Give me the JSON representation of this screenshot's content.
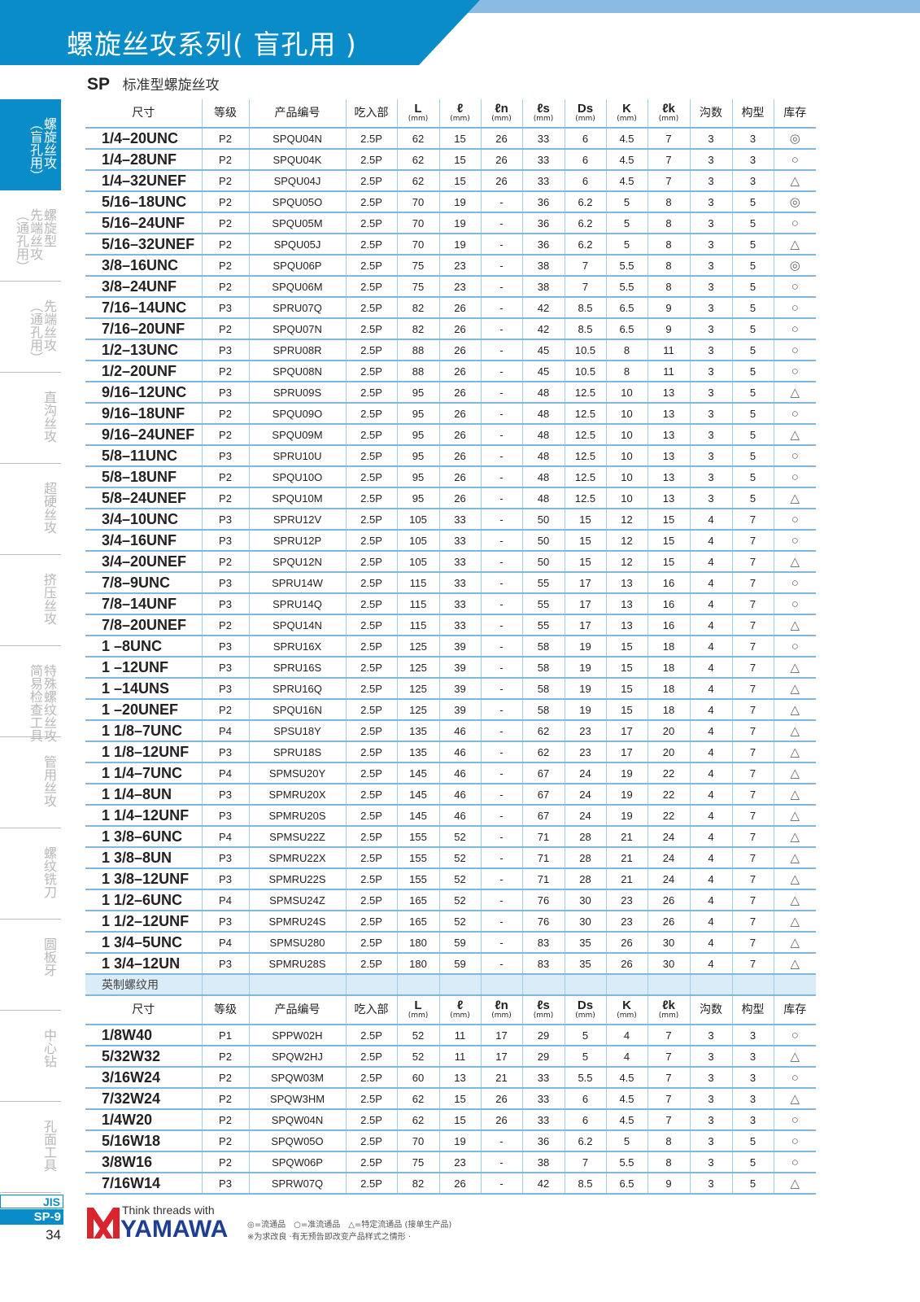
{
  "header": {
    "title": "螺旋丝攻系列( 盲孔用 )"
  },
  "series": {
    "code": "SP",
    "name": "标准型螺旋丝攻"
  },
  "colors": {
    "brand_blue": "#0a8cc8",
    "light_blue": "#8bbbe0",
    "logo_red": "#d9232d",
    "logo_navy": "#1d3e93"
  },
  "sidebar": {
    "items": [
      {
        "label": "螺旋丝攻\n（盲孔用）",
        "active": true
      },
      {
        "label": "螺旋型\n先端丝攻\n（通孔用）"
      },
      {
        "label": "先端丝攻\n（通孔用）"
      },
      {
        "label": "直沟丝攻"
      },
      {
        "label": "超硬丝攻"
      },
      {
        "label": "挤压丝攻"
      },
      {
        "label": "特殊螺纹丝攻\n简易检查工具"
      },
      {
        "label": "管用丝攻"
      },
      {
        "label": "螺纹铣刀"
      },
      {
        "label": "圆板牙"
      },
      {
        "label": "中心钻"
      },
      {
        "label": "孔面工具"
      }
    ]
  },
  "table": {
    "headers": [
      {
        "label": "尺寸"
      },
      {
        "label": "等级"
      },
      {
        "label": "产品编号"
      },
      {
        "label": "吃入部"
      },
      {
        "label": "L",
        "unit": "(mm)"
      },
      {
        "label": "ℓ",
        "unit": "(mm)"
      },
      {
        "label": "ℓn",
        "unit": "(mm)"
      },
      {
        "label": "ℓs",
        "unit": "(mm)"
      },
      {
        "label": "Ds",
        "unit": "(mm)"
      },
      {
        "label": "K",
        "unit": "(mm)"
      },
      {
        "label": "ℓk",
        "unit": "(mm)"
      },
      {
        "label": "沟数"
      },
      {
        "label": "构型"
      },
      {
        "label": "库存"
      }
    ],
    "rows": [
      [
        "1/4–20UNC",
        "P2",
        "SPQU04N",
        "2.5P",
        "62",
        "15",
        "26",
        "33",
        "6",
        "4.5",
        "7",
        "3",
        "3",
        "◎"
      ],
      [
        "1/4–28UNF",
        "P2",
        "SPQU04K",
        "2.5P",
        "62",
        "15",
        "26",
        "33",
        "6",
        "4.5",
        "7",
        "3",
        "3",
        "○"
      ],
      [
        "1/4–32UNEF",
        "P2",
        "SPQU04J",
        "2.5P",
        "62",
        "15",
        "26",
        "33",
        "6",
        "4.5",
        "7",
        "3",
        "3",
        "△"
      ],
      [
        "5/16–18UNC",
        "P2",
        "SPQU05O",
        "2.5P",
        "70",
        "19",
        "-",
        "36",
        "6.2",
        "5",
        "8",
        "3",
        "5",
        "◎"
      ],
      [
        "5/16–24UNF",
        "P2",
        "SPQU05M",
        "2.5P",
        "70",
        "19",
        "-",
        "36",
        "6.2",
        "5",
        "8",
        "3",
        "5",
        "○"
      ],
      [
        "5/16–32UNEF",
        "P2",
        "SPQU05J",
        "2.5P",
        "70",
        "19",
        "-",
        "36",
        "6.2",
        "5",
        "8",
        "3",
        "5",
        "△"
      ],
      [
        "3/8–16UNC",
        "P2",
        "SPQU06P",
        "2.5P",
        "75",
        "23",
        "-",
        "38",
        "7",
        "5.5",
        "8",
        "3",
        "5",
        "◎"
      ],
      [
        "3/8–24UNF",
        "P2",
        "SPQU06M",
        "2.5P",
        "75",
        "23",
        "-",
        "38",
        "7",
        "5.5",
        "8",
        "3",
        "5",
        "○"
      ],
      [
        "7/16–14UNC",
        "P3",
        "SPRU07Q",
        "2.5P",
        "82",
        "26",
        "-",
        "42",
        "8.5",
        "6.5",
        "9",
        "3",
        "5",
        "○"
      ],
      [
        "7/16–20UNF",
        "P2",
        "SPQU07N",
        "2.5P",
        "82",
        "26",
        "-",
        "42",
        "8.5",
        "6.5",
        "9",
        "3",
        "5",
        "○"
      ],
      [
        "1/2–13UNC",
        "P3",
        "SPRU08R",
        "2.5P",
        "88",
        "26",
        "-",
        "45",
        "10.5",
        "8",
        "11",
        "3",
        "5",
        "○"
      ],
      [
        "1/2–20UNF",
        "P2",
        "SPQU08N",
        "2.5P",
        "88",
        "26",
        "-",
        "45",
        "10.5",
        "8",
        "11",
        "3",
        "5",
        "○"
      ],
      [
        "9/16–12UNC",
        "P3",
        "SPRU09S",
        "2.5P",
        "95",
        "26",
        "-",
        "48",
        "12.5",
        "10",
        "13",
        "3",
        "5",
        "△"
      ],
      [
        "9/16–18UNF",
        "P2",
        "SPQU09O",
        "2.5P",
        "95",
        "26",
        "-",
        "48",
        "12.5",
        "10",
        "13",
        "3",
        "5",
        "○"
      ],
      [
        "9/16–24UNEF",
        "P2",
        "SPQU09M",
        "2.5P",
        "95",
        "26",
        "-",
        "48",
        "12.5",
        "10",
        "13",
        "3",
        "5",
        "△"
      ],
      [
        "5/8–11UNC",
        "P3",
        "SPRU10U",
        "2.5P",
        "95",
        "26",
        "-",
        "48",
        "12.5",
        "10",
        "13",
        "3",
        "5",
        "○"
      ],
      [
        "5/8–18UNF",
        "P2",
        "SPQU10O",
        "2.5P",
        "95",
        "26",
        "-",
        "48",
        "12.5",
        "10",
        "13",
        "3",
        "5",
        "○"
      ],
      [
        "5/8–24UNEF",
        "P2",
        "SPQU10M",
        "2.5P",
        "95",
        "26",
        "-",
        "48",
        "12.5",
        "10",
        "13",
        "3",
        "5",
        "△"
      ],
      [
        "3/4–10UNC",
        "P3",
        "SPRU12V",
        "2.5P",
        "105",
        "33",
        "-",
        "50",
        "15",
        "12",
        "15",
        "4",
        "7",
        "○"
      ],
      [
        "3/4–16UNF",
        "P3",
        "SPRU12P",
        "2.5P",
        "105",
        "33",
        "-",
        "50",
        "15",
        "12",
        "15",
        "4",
        "7",
        "○"
      ],
      [
        "3/4–20UNEF",
        "P2",
        "SPQU12N",
        "2.5P",
        "105",
        "33",
        "-",
        "50",
        "15",
        "12",
        "15",
        "4",
        "7",
        "△"
      ],
      [
        "7/8–9UNC",
        "P3",
        "SPRU14W",
        "2.5P",
        "115",
        "33",
        "-",
        "55",
        "17",
        "13",
        "16",
        "4",
        "7",
        "○"
      ],
      [
        "7/8–14UNF",
        "P3",
        "SPRU14Q",
        "2.5P",
        "115",
        "33",
        "-",
        "55",
        "17",
        "13",
        "16",
        "4",
        "7",
        "○"
      ],
      [
        "7/8–20UNEF",
        "P2",
        "SPQU14N",
        "2.5P",
        "115",
        "33",
        "-",
        "55",
        "17",
        "13",
        "16",
        "4",
        "7",
        "△"
      ],
      [
        "1 –8UNC",
        "P3",
        "SPRU16X",
        "2.5P",
        "125",
        "39",
        "-",
        "58",
        "19",
        "15",
        "18",
        "4",
        "7",
        "○"
      ],
      [
        "1 –12UNF",
        "P3",
        "SPRU16S",
        "2.5P",
        "125",
        "39",
        "-",
        "58",
        "19",
        "15",
        "18",
        "4",
        "7",
        "△"
      ],
      [
        "1 –14UNS",
        "P3",
        "SPRU16Q",
        "2.5P",
        "125",
        "39",
        "-",
        "58",
        "19",
        "15",
        "18",
        "4",
        "7",
        "△"
      ],
      [
        "1 –20UNEF",
        "P2",
        "SPQU16N",
        "2.5P",
        "125",
        "39",
        "-",
        "58",
        "19",
        "15",
        "18",
        "4",
        "7",
        "△"
      ],
      [
        "1 1/8–7UNC",
        "P4",
        "SPSU18Y",
        "2.5P",
        "135",
        "46",
        "-",
        "62",
        "23",
        "17",
        "20",
        "4",
        "7",
        "△"
      ],
      [
        "1 1/8–12UNF",
        "P3",
        "SPRU18S",
        "2.5P",
        "135",
        "46",
        "-",
        "62",
        "23",
        "17",
        "20",
        "4",
        "7",
        "△"
      ],
      [
        "1 1/4–7UNC",
        "P4",
        "SPMSU20Y",
        "2.5P",
        "145",
        "46",
        "-",
        "67",
        "24",
        "19",
        "22",
        "4",
        "7",
        "△"
      ],
      [
        "1 1/4–8UN",
        "P3",
        "SPMRU20X",
        "2.5P",
        "145",
        "46",
        "-",
        "67",
        "24",
        "19",
        "22",
        "4",
        "7",
        "△"
      ],
      [
        "1 1/4–12UNF",
        "P3",
        "SPMRU20S",
        "2.5P",
        "145",
        "46",
        "-",
        "67",
        "24",
        "19",
        "22",
        "4",
        "7",
        "△"
      ],
      [
        "1 3/8–6UNC",
        "P4",
        "SPMSU22Z",
        "2.5P",
        "155",
        "52",
        "-",
        "71",
        "28",
        "21",
        "24",
        "4",
        "7",
        "△"
      ],
      [
        "1 3/8–8UN",
        "P3",
        "SPMRU22X",
        "2.5P",
        "155",
        "52",
        "-",
        "71",
        "28",
        "21",
        "24",
        "4",
        "7",
        "△"
      ],
      [
        "1 3/8–12UNF",
        "P3",
        "SPMRU22S",
        "2.5P",
        "155",
        "52",
        "-",
        "71",
        "28",
        "21",
        "24",
        "4",
        "7",
        "△"
      ],
      [
        "1 1/2–6UNC",
        "P4",
        "SPMSU24Z",
        "2.5P",
        "165",
        "52",
        "-",
        "76",
        "30",
        "23",
        "26",
        "4",
        "7",
        "△"
      ],
      [
        "1 1/2–12UNF",
        "P3",
        "SPMRU24S",
        "2.5P",
        "165",
        "52",
        "-",
        "76",
        "30",
        "23",
        "26",
        "4",
        "7",
        "△"
      ],
      [
        "1 3/4–5UNC",
        "P4",
        "SPMSU280",
        "2.5P",
        "180",
        "59",
        "-",
        "83",
        "35",
        "26",
        "30",
        "4",
        "7",
        "△"
      ],
      [
        "1 3/4–12UN",
        "P3",
        "SPMRU28S",
        "2.5P",
        "180",
        "59",
        "-",
        "83",
        "35",
        "26",
        "30",
        "4",
        "7",
        "△"
      ]
    ],
    "section_label": "英制螺纹用",
    "rows2": [
      [
        "1/8W40",
        "P1",
        "SPPW02H",
        "2.5P",
        "52",
        "11",
        "17",
        "29",
        "5",
        "4",
        "7",
        "3",
        "3",
        "○"
      ],
      [
        "5/32W32",
        "P2",
        "SPQW2HJ",
        "2.5P",
        "52",
        "11",
        "17",
        "29",
        "5",
        "4",
        "7",
        "3",
        "3",
        "△"
      ],
      [
        "3/16W24",
        "P2",
        "SPQW03M",
        "2.5P",
        "60",
        "13",
        "21",
        "33",
        "5.5",
        "4.5",
        "7",
        "3",
        "3",
        "○"
      ],
      [
        "7/32W24",
        "P2",
        "SPQW3HM",
        "2.5P",
        "62",
        "15",
        "26",
        "33",
        "6",
        "4.5",
        "7",
        "3",
        "3",
        "△"
      ],
      [
        "1/4W20",
        "P2",
        "SPQW04N",
        "2.5P",
        "62",
        "15",
        "26",
        "33",
        "6",
        "4.5",
        "7",
        "3",
        "3",
        "○"
      ],
      [
        "5/16W18",
        "P2",
        "SPQW05O",
        "2.5P",
        "70",
        "19",
        "-",
        "36",
        "6.2",
        "5",
        "8",
        "3",
        "5",
        "○"
      ],
      [
        "3/8W16",
        "P2",
        "SPQW06P",
        "2.5P",
        "75",
        "23",
        "-",
        "38",
        "7",
        "5.5",
        "8",
        "3",
        "5",
        "○"
      ],
      [
        "7/16W14",
        "P3",
        "SPRW07Q",
        "2.5P",
        "82",
        "26",
        "-",
        "42",
        "8.5",
        "6.5",
        "9",
        "3",
        "5",
        "△"
      ]
    ]
  },
  "footer": {
    "jis": "JIS",
    "section": "SP-9",
    "page": "34",
    "tagline": "Think threads with",
    "brand": "YAMAWA",
    "legend": "◎=流通品　○=准流通品　△=特定流通品 (接单生产品)",
    "note": "※为求改良 ·有无预告即改变产品样式之情形 ·"
  }
}
